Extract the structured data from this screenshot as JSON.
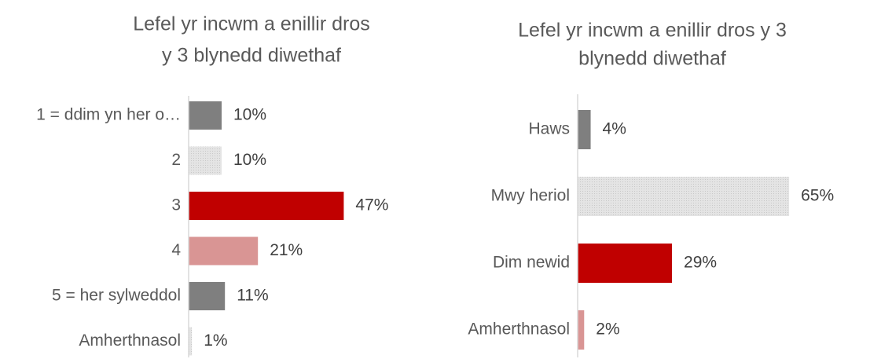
{
  "chart_data": [
    {
      "type": "bar",
      "orientation": "horizontal",
      "title": [
        "Lefel yr incwm a enillir dros",
        "y 3 blynedd diwethaf"
      ],
      "categories": [
        "1 = ddim yn her o…",
        "2",
        "3",
        "4",
        "5 = her sylweddol",
        "Amherthnasol"
      ],
      "values": [
        10,
        10,
        47,
        21,
        11,
        1
      ],
      "value_labels": [
        "10%",
        "10%",
        "47%",
        "21%",
        "11%",
        "1%"
      ],
      "colors": [
        "#7f7f7f",
        "#d9d9d9",
        "#c00000",
        "#d99594",
        "#7f7f7f",
        "#d9d9d9"
      ]
    },
    {
      "type": "bar",
      "orientation": "horizontal",
      "title": [
        "Lefel yr incwm a enillir dros y 3",
        "blynedd diwethaf"
      ],
      "categories": [
        "Haws",
        "Mwy heriol",
        "Dim newid",
        "Amherthnasol"
      ],
      "values": [
        4,
        65,
        29,
        2
      ],
      "value_labels": [
        "4%",
        "65%",
        "29%",
        "2%"
      ],
      "colors": [
        "#7f7f7f",
        "#d9d9d9",
        "#c00000",
        "#d99594"
      ]
    }
  ]
}
